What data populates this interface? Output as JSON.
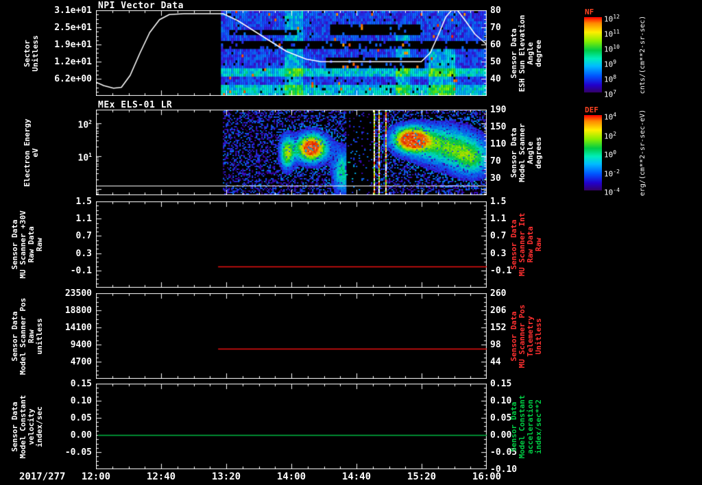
{
  "window": {
    "background": "#000000",
    "foreground": "#ffffff",
    "accent_red": "#ff3030",
    "accent_green": "#00cc44"
  },
  "x_axis": {
    "date_label": "2017/277",
    "tick_labels": [
      "12:00",
      "12:40",
      "13:20",
      "14:00",
      "14:40",
      "15:20",
      "16:00"
    ],
    "hours_range": [
      12,
      16
    ]
  },
  "panels": [
    {
      "title": "NPI Vector Data",
      "left_label_lines": [
        "Sector",
        "Unitless"
      ],
      "left_ticks": [
        "3.1e+01",
        "2.5e+01",
        "1.9e+01",
        "1.2e+01",
        "6.2e+00"
      ],
      "right_ticks": [
        "80",
        "70",
        "60",
        "50",
        "40"
      ],
      "right_label_lines": [
        "Sensor Data",
        "ESH Sun Elevation",
        "Angle",
        "degree"
      ],
      "right_label_color": "#ffffff"
    },
    {
      "title": "MEx ELS-01 LR",
      "left_label_lines": [
        "Electron Energy",
        "eV"
      ],
      "left_log_ticks": {
        "base": 10,
        "exponents": [
          2,
          1
        ],
        "fracs": [
          0.16,
          0.544
        ]
      },
      "right_ticks": [
        "190",
        "150",
        "110",
        "70",
        "30"
      ],
      "right_label_lines": [
        "Sensor Data",
        "Model Scanner",
        "Angle",
        "degrees"
      ],
      "right_label_color": "#ffffff"
    },
    {
      "title": "",
      "left_label_lines": [
        "Sensor Data",
        "MU Scanner +30V",
        "Raw Data",
        "Raw"
      ],
      "left_ticks": [
        "1.5",
        "1.1",
        "0.7",
        "0.3",
        "-0.1"
      ],
      "right_ticks": [
        "1.5",
        "1.1",
        "0.7",
        "0.3",
        "-0.1"
      ],
      "right_label_lines": [
        "Sensor Data",
        "MU Scanner Int",
        "Raw Data",
        "Raw"
      ],
      "right_label_color": "#ff3030"
    },
    {
      "title": "",
      "left_label_lines": [
        "Sensor Data",
        "Model Scanner Pos",
        "Raw",
        "unitless"
      ],
      "left_ticks": [
        "23500",
        "18800",
        "14100",
        "9400",
        "4700"
      ],
      "right_ticks": [
        "260",
        "206",
        "152",
        "98",
        "44"
      ],
      "right_label_lines": [
        "Sensor Data",
        "MU Scanner Pos",
        "Telemetry",
        "Unitless"
      ],
      "right_label_color": "#ff3030"
    },
    {
      "title": "",
      "left_label_lines": [
        "Sensor Data",
        "Model Constant",
        "velocity",
        "index/sec"
      ],
      "left_ticks": [
        "0.15",
        "0.10",
        "0.05",
        "0.00",
        "-0.05"
      ],
      "right_ticks": [
        "0.15",
        "0.10",
        "0.05",
        "0.00",
        "-0.05",
        "-0.10"
      ],
      "right_label_lines": [
        "Sensor Data",
        "Model Constant",
        "acceleration",
        "index/sec**2"
      ],
      "right_label_color": "#00cc44"
    }
  ],
  "colorbars": [
    {
      "title": "NF",
      "title_color": "#ff4422",
      "unit": "cnts/(cm**2-sr-sec)",
      "tick_exponents": [
        12,
        11,
        10,
        9,
        8,
        7
      ]
    },
    {
      "title": "DEF",
      "title_color": "#ff4422",
      "unit": "erg/(cm**2-sr-sec-eV)",
      "tick_exponents": [
        4,
        2,
        0,
        -2,
        -4
      ]
    }
  ],
  "chart_data": [
    {
      "type": "heatmap",
      "name": "npi_sector_spectrogram",
      "x_unit": "hours",
      "x_range": [
        12,
        16
      ],
      "data_t_range": [
        13.28,
        16.0
      ],
      "rows": 31,
      "y_axis": {
        "label": "Sector",
        "range": [
          0,
          31
        ],
        "ticks": [
          31,
          25,
          19,
          12,
          6.2
        ]
      },
      "features": {
        "base_intensity": [
          0.17,
          0.35
        ],
        "bright_row_bands_frac": [
          [
            0.68,
            0.78
          ],
          [
            0.88,
            1.0
          ]
        ],
        "black_bands": [
          {
            "t": [
              13.28,
              16.0
            ],
            "f": [
              0.36,
              0.46
            ]
          },
          {
            "t": [
              14.35,
              15.35
            ],
            "f": [
              0.56,
              0.69
            ]
          },
          {
            "t": [
              14.39,
              15.31
            ],
            "f": [
              0.176,
              0.3
            ]
          },
          {
            "t": [
              13.35,
              14.05
            ],
            "f": [
              0.23,
              0.29
            ]
          }
        ],
        "bright_columns": [
          {
            "t": [
              13.93,
              14.12
            ],
            "f": [
              0,
              1
            ]
          },
          {
            "t": [
              15.05,
              15.2
            ],
            "f": [
              0.3,
              1
            ]
          },
          {
            "t": [
              15.4,
              15.67
            ],
            "f": [
              0.45,
              1
            ]
          }
        ]
      },
      "overlay_line": {
        "name": "esh_sun_elevation_angle",
        "color": "#ffffff",
        "axis": "right",
        "ylim": [
          30,
          80
        ],
        "points": [
          [
            12.0,
            38
          ],
          [
            12.08,
            36
          ],
          [
            12.18,
            34.5
          ],
          [
            12.26,
            35
          ],
          [
            12.35,
            42
          ],
          [
            12.45,
            55
          ],
          [
            12.55,
            67
          ],
          [
            12.65,
            74.5
          ],
          [
            12.75,
            77.5
          ],
          [
            12.9,
            78
          ],
          [
            13.3,
            78
          ],
          [
            13.45,
            74
          ],
          [
            13.7,
            65
          ],
          [
            13.95,
            56
          ],
          [
            14.15,
            51.5
          ],
          [
            14.3,
            50
          ],
          [
            15.33,
            50
          ],
          [
            15.42,
            55
          ],
          [
            15.5,
            65
          ],
          [
            15.58,
            76
          ],
          [
            15.64,
            80
          ],
          [
            15.7,
            80
          ],
          [
            15.78,
            74
          ],
          [
            15.88,
            66
          ],
          [
            16.0,
            60
          ]
        ]
      }
    },
    {
      "type": "heatmap",
      "name": "els_energy_spectrogram",
      "x_range": [
        12,
        16
      ],
      "data_t_range": [
        13.3,
        16.0
      ],
      "y_axis": {
        "label": "Electron Energy (eV)",
        "scale": "log",
        "decade_frac": 0.384,
        "frac_of_100eV": 0.16
      },
      "blobs": [
        {
          "tc": 13.95,
          "fc": 0.5,
          "tsig": 0.05,
          "fsig": 0.13,
          "peak": 0.8
        },
        {
          "tc": 14.2,
          "fc": 0.44,
          "tsig": 0.11,
          "fsig": 0.11,
          "peak": 1.35
        },
        {
          "tc": 14.52,
          "fc": 0.72,
          "tsig": 0.07,
          "fsig": 0.18,
          "peak": 0.6
        },
        {
          "tc": 15.22,
          "fc": 0.34,
          "tsig": 0.13,
          "fsig": 0.1,
          "peak": 1.35
        },
        {
          "tc": 15.58,
          "fc": 0.42,
          "tsig": 0.22,
          "fsig": 0.16,
          "peak": 0.7
        },
        {
          "tc": 15.85,
          "fc": 0.58,
          "tsig": 0.14,
          "fsig": 0.14,
          "peak": 0.55
        }
      ],
      "dark_gap_t": [
        14.56,
        14.83
      ],
      "bright_stripes_t": [
        14.84,
        14.89,
        14.96
      ],
      "white_hline_frac": 0.888
    },
    {
      "type": "line",
      "ylim": [
        -0.5,
        1.5
      ],
      "series": [
        {
          "name": "mu_scanner_int_raw",
          "color": "#ee1111",
          "value": 0.0,
          "t_range": [
            13.25,
            16.0
          ]
        }
      ]
    },
    {
      "type": "line",
      "ylim": [
        0,
        23500
      ],
      "series": [
        {
          "name": "mu_scanner_pos_raw",
          "color": "#ee1111",
          "value": 8300,
          "t_range": [
            13.25,
            16.0
          ]
        }
      ]
    },
    {
      "type": "line",
      "ylim": [
        -0.1,
        0.15
      ],
      "series": [
        {
          "name": "model_constant_velocity",
          "color": "#00bb44",
          "value": 0.0,
          "t_range": [
            12.02,
            16.0
          ]
        }
      ]
    }
  ]
}
